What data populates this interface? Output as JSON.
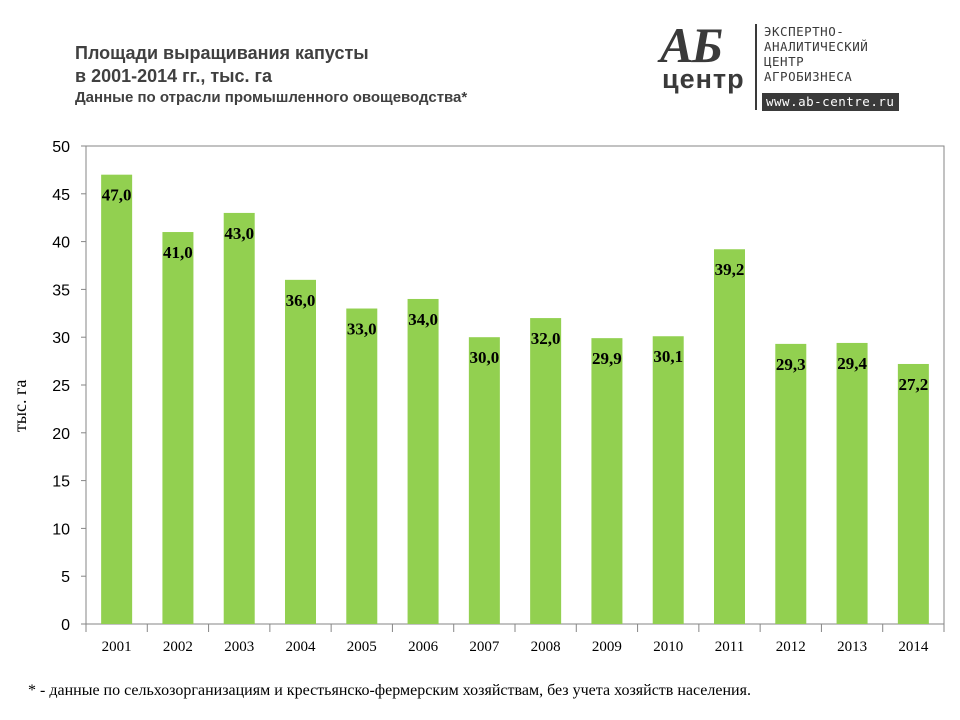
{
  "header": {
    "title_line1": "Площади выращивания капусты",
    "title_line2": "в 2001-2014 гг., тыс. га",
    "subtitle": "Данные по отрасли промышленного овощеводства*"
  },
  "logo": {
    "mark_top": "АБ",
    "mark_bottom": "центр",
    "text": "ЭКСПЕРТНО-\nАНАЛИТИЧЕСКИЙ\nЦЕНТР\nАГРОБИЗНЕСА",
    "url": "www.ab-centre.ru"
  },
  "footnote": "* - данные по сельхозорганизациям и крестьянско-фермерским хозяйствам, без учета хозяйств населения.",
  "chart_data": {
    "type": "bar",
    "title": "Площади выращивания капусты в 2001-2014 гг., тыс. га",
    "xlabel": "",
    "ylabel": "тыс. га",
    "ylim": [
      0,
      50
    ],
    "yticks": [
      0,
      5,
      10,
      15,
      20,
      25,
      30,
      35,
      40,
      45,
      50
    ],
    "categories": [
      "2001",
      "2002",
      "2003",
      "2004",
      "2005",
      "2006",
      "2007",
      "2008",
      "2009",
      "2010",
      "2011",
      "2012",
      "2013",
      "2014"
    ],
    "values": [
      47.0,
      41.0,
      43.0,
      36.0,
      33.0,
      34.0,
      30.0,
      32.0,
      29.9,
      30.1,
      39.2,
      29.3,
      29.4,
      27.2
    ],
    "data_labels": [
      "47,0",
      "41,0",
      "43,0",
      "36,0",
      "33,0",
      "34,0",
      "30,0",
      "32,0",
      "29,9",
      "30,1",
      "39,2",
      "29,3",
      "29,4",
      "27,2"
    ],
    "bar_color": "#92d050",
    "grid": false,
    "legend": "none"
  }
}
